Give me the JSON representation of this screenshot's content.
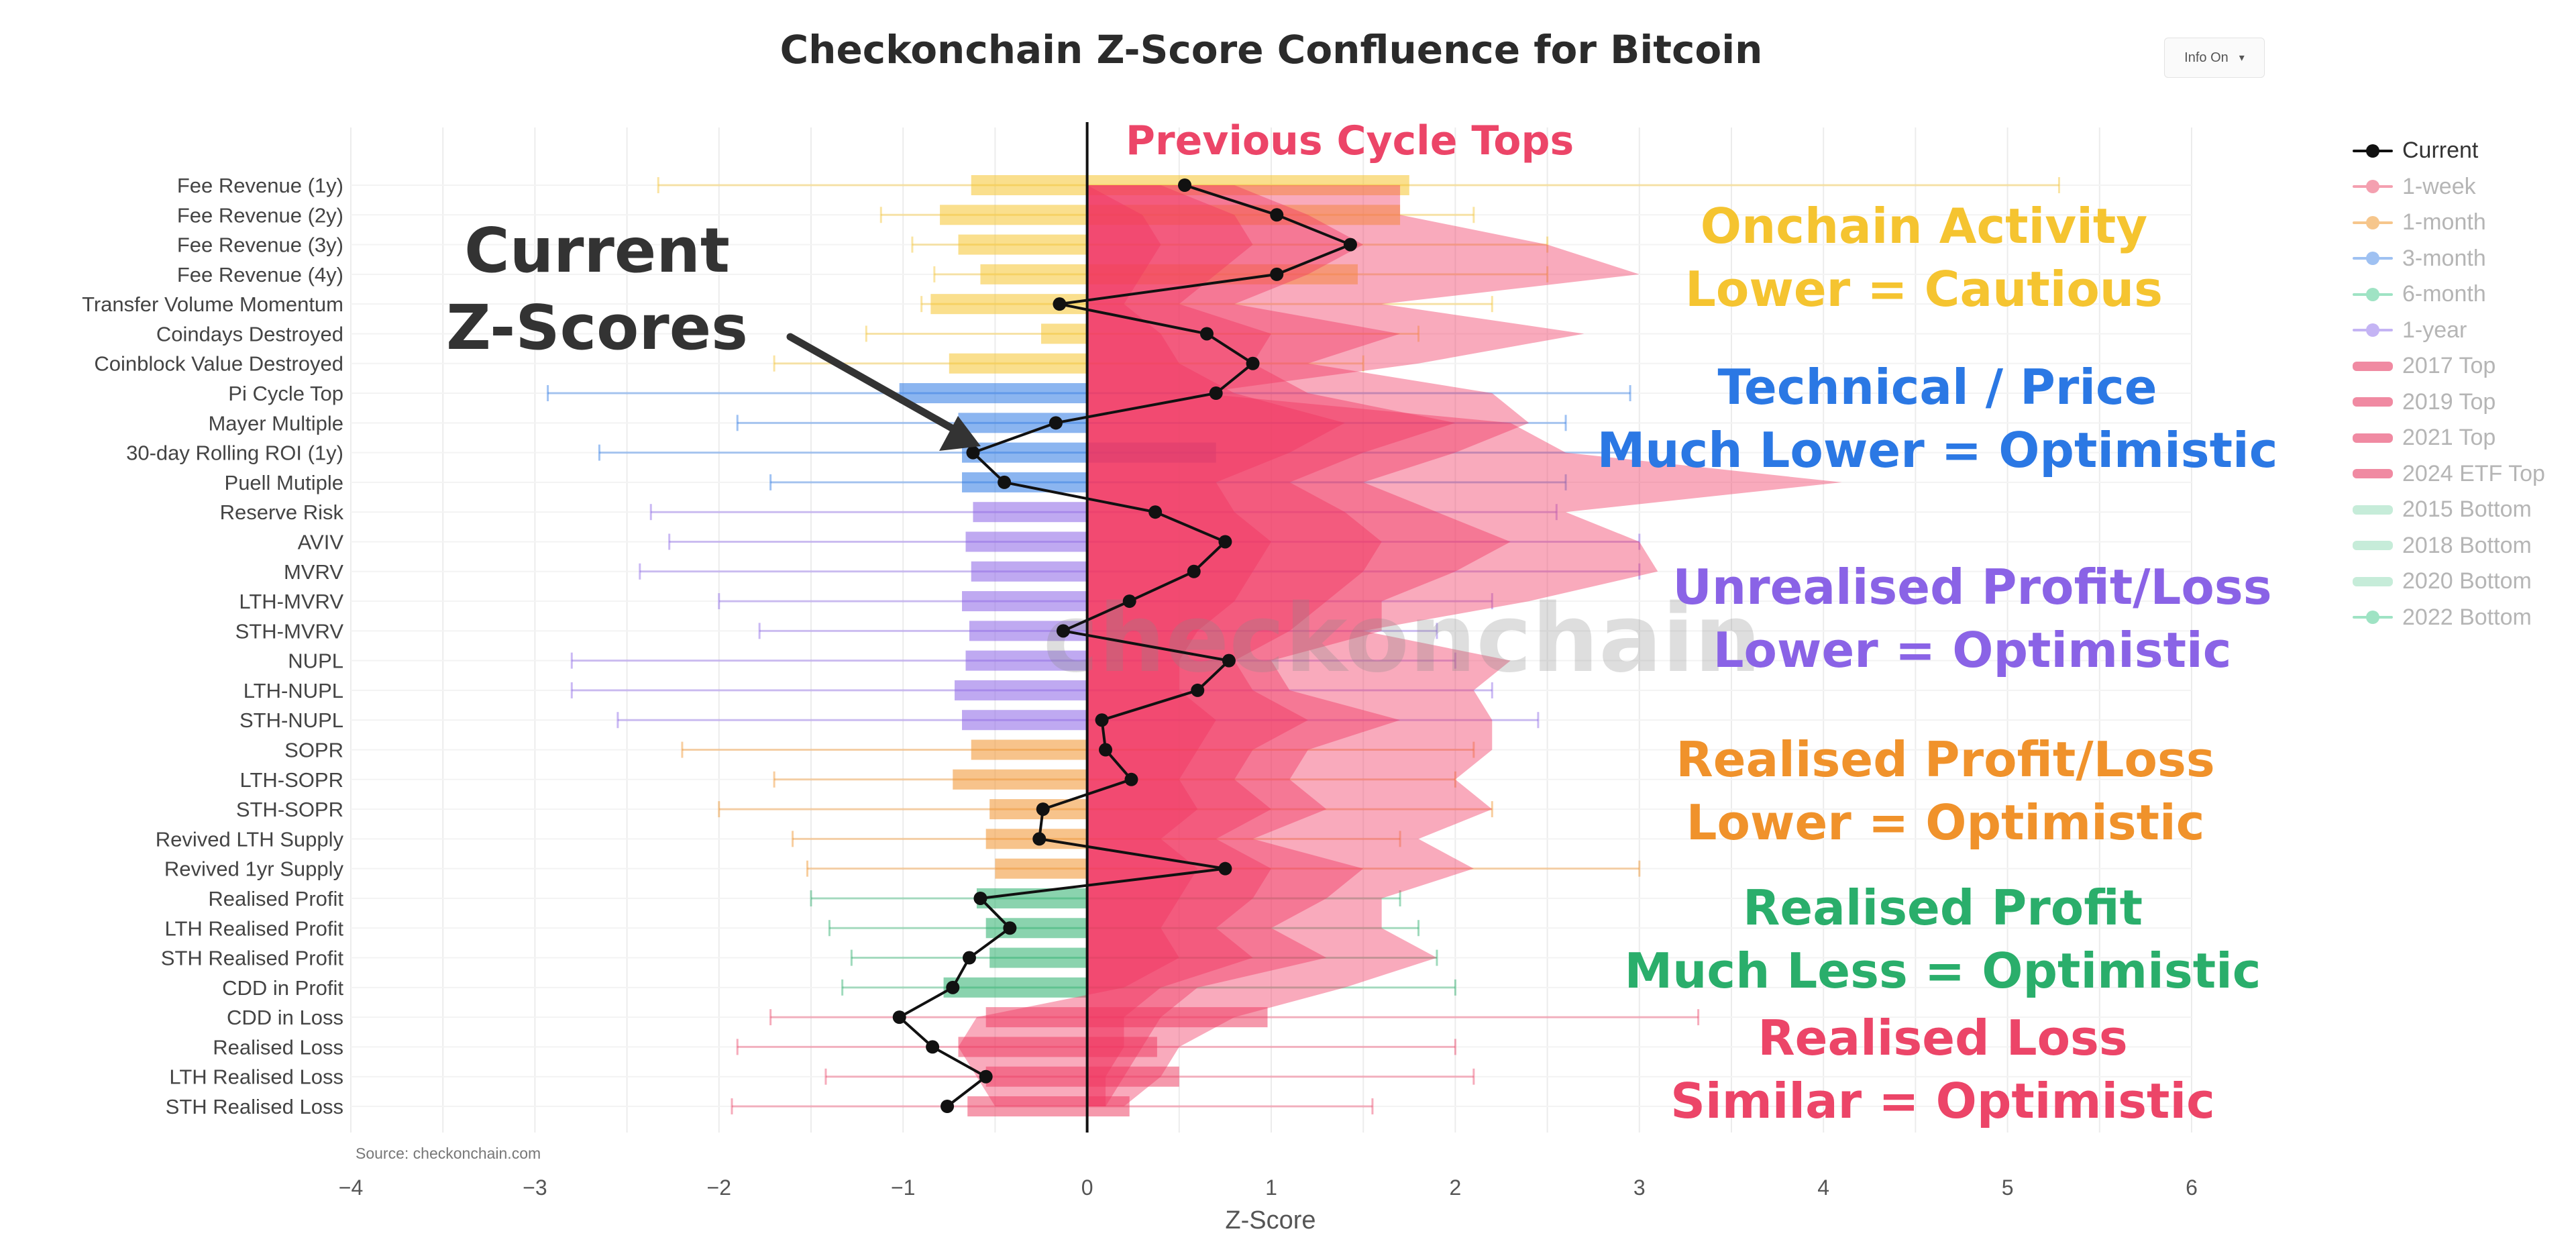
{
  "title": "Checkonchain Z-Score Confluence for Bitcoin",
  "info_button": {
    "label": "Info On",
    "icon": "caret-down-icon"
  },
  "source": "Source: checkonchain.com",
  "watermark": "checkonchain",
  "x_axis_title": "Z-Score",
  "previous_cycle_tops_label": "Previous Cycle Tops",
  "current_label": [
    "Current",
    "Z-Scores"
  ],
  "colors": {
    "current": "#000000",
    "top_fill": "#f0345f",
    "onchain": "#f5c430",
    "technical": "#2b78e4",
    "unrealised": "#8a63e6",
    "realised_pl": "#f0922b",
    "realised_profit": "#2aae6b",
    "realised_loss": "#ec4568"
  },
  "legend": [
    {
      "label": "Current",
      "color": "#111111",
      "style": "line-dot",
      "active": true
    },
    {
      "label": "1-week",
      "color": "#f4a0b0",
      "style": "line-dot"
    },
    {
      "label": "1-month",
      "color": "#f6c68c",
      "style": "line-dot"
    },
    {
      "label": "3-month",
      "color": "#9fc1f2",
      "style": "line-dot"
    },
    {
      "label": "6-month",
      "color": "#9fe3c4",
      "style": "line-dot"
    },
    {
      "label": "1-year",
      "color": "#c4b4f4",
      "style": "line-dot"
    },
    {
      "label": "2017 Top",
      "color": "#f08aa2",
      "style": "band"
    },
    {
      "label": "2019 Top",
      "color": "#f08aa2",
      "style": "band"
    },
    {
      "label": "2021 Top",
      "color": "#f08aa2",
      "style": "band"
    },
    {
      "label": "2024 ETF Top",
      "color": "#f08aa2",
      "style": "band"
    },
    {
      "label": "2015 Bottom",
      "color": "#c6ecd9",
      "style": "band"
    },
    {
      "label": "2018 Bottom",
      "color": "#c6ecd9",
      "style": "band"
    },
    {
      "label": "2020 Bottom",
      "color": "#c6ecd9",
      "style": "band"
    },
    {
      "label": "2022 Bottom",
      "color": "#9fe3c4",
      "style": "line-dot"
    }
  ],
  "annotations": [
    {
      "lines": [
        "Onchain Activity",
        "Lower = Cautious"
      ],
      "color": "#f5c430"
    },
    {
      "lines": [
        "Technical / Price",
        "Much Lower = Optimistic"
      ],
      "color": "#2b78e4"
    },
    {
      "lines": [
        "Unrealised Profit/Loss",
        "Lower = Optimistic"
      ],
      "color": "#8a63e6"
    },
    {
      "lines": [
        "Realised Profit/Loss",
        "Lower = Optimistic"
      ],
      "color": "#f0922b"
    },
    {
      "lines": [
        "Realised Profit",
        "Much Less = Optimistic"
      ],
      "color": "#2aae6b"
    },
    {
      "lines": [
        "Realised Loss",
        "Similar = Optimistic"
      ],
      "color": "#ec4568"
    }
  ],
  "chart_data": {
    "type": "bar",
    "orientation": "horizontal",
    "xlim": [
      -4,
      6
    ],
    "x_ticks": [
      "−4",
      "−3",
      "−2",
      "−1",
      "0",
      "1",
      "2",
      "3",
      "4",
      "5",
      "6"
    ],
    "xlabel": "Z-Score",
    "grid": true,
    "legend_position": "right",
    "categories": [
      "Fee Revenue (1y)",
      "Fee Revenue (2y)",
      "Fee Revenue (3y)",
      "Fee Revenue (4y)",
      "Transfer Volume Momentum",
      "Coindays Destroyed",
      "Coinblock Value Destroyed",
      "Pi Cycle Top",
      "Mayer Multiple",
      "30-day Rolling ROI (1y)",
      "Puell Mutiple",
      "Reserve Risk",
      "AVIV",
      "MVRV",
      "LTH-MVRV",
      "STH-MVRV",
      "NUPL",
      "LTH-NUPL",
      "STH-NUPL",
      "SOPR",
      "LTH-SOPR",
      "STH-SOPR",
      "Revived LTH Supply",
      "Revived 1yr Supply",
      "Realised Profit",
      "LTH Realised Profit",
      "STH Realised Profit",
      "CDD in Profit",
      "CDD in Loss",
      "Realised Loss",
      "LTH Realised Loss",
      "STH Realised Loss"
    ],
    "groups": [
      "onchain",
      "onchain",
      "onchain",
      "onchain",
      "onchain",
      "onchain",
      "onchain",
      "technical",
      "technical",
      "technical",
      "technical",
      "unrealised",
      "unrealised",
      "unrealised",
      "unrealised",
      "unrealised",
      "unrealised",
      "unrealised",
      "unrealised",
      "realised_pl",
      "realised_pl",
      "realised_pl",
      "realised_pl",
      "realised_pl",
      "realised_profit",
      "realised_profit",
      "realised_profit",
      "realised_profit",
      "realised_loss",
      "realised_loss",
      "realised_loss",
      "realised_loss"
    ],
    "series": [
      {
        "name": "Current",
        "type": "line",
        "values": [
          0.53,
          1.03,
          1.43,
          1.03,
          -0.15,
          0.65,
          0.9,
          0.7,
          -0.17,
          -0.62,
          -0.45,
          0.37,
          0.75,
          0.58,
          0.23,
          -0.13,
          0.77,
          0.6,
          0.08,
          0.1,
          0.24,
          -0.24,
          -0.26,
          0.75,
          -0.58,
          -0.42,
          -0.64,
          -0.73,
          -1.02,
          -0.84,
          -0.55,
          -0.76
        ]
      },
      {
        "name": "2017 Top",
        "type": "area",
        "values": [
          1.7,
          1.7,
          2.5,
          3.0,
          1.6,
          2.7,
          1.8,
          0.6,
          2.3,
          2.6,
          4.1,
          2.6,
          3.0,
          3.1,
          2.4,
          1.5,
          2.3,
          2.1,
          2.2,
          2.2,
          2.0,
          2.2,
          1.8,
          2.1,
          1.6,
          1.6,
          1.9,
          1.4,
          0.8,
          0.5,
          0.4,
          0.2
        ]
      },
      {
        "name": "2019 Top",
        "type": "area",
        "values": [
          0.8,
          1.2,
          1.5,
          1.2,
          0.8,
          1.7,
          1.2,
          2.2,
          2.4,
          2.0,
          1.5,
          1.9,
          2.3,
          2.0,
          1.6,
          1.6,
          1.0,
          1.1,
          1.7,
          1.2,
          1.1,
          1.3,
          0.9,
          1.5,
          1.3,
          1.0,
          1.3,
          0.6,
          0.4,
          0.3,
          0.2,
          0.1
        ]
      },
      {
        "name": "2021 Top",
        "type": "area",
        "values": [
          0.4,
          0.8,
          0.9,
          0.7,
          0.5,
          1.0,
          0.9,
          1.2,
          2.0,
          1.5,
          1.1,
          1.4,
          1.6,
          1.5,
          1.3,
          1.1,
          0.8,
          0.9,
          1.2,
          0.9,
          0.8,
          1.0,
          0.7,
          1.0,
          0.9,
          0.7,
          0.9,
          0.4,
          0.2,
          0.2,
          0.1,
          0.1
        ]
      },
      {
        "name": "2024 ETF Top",
        "type": "area",
        "values": [
          0.0,
          0.3,
          0.4,
          0.3,
          0.2,
          0.4,
          0.5,
          0.8,
          1.4,
          1.1,
          0.7,
          0.8,
          1.0,
          0.9,
          0.8,
          0.6,
          0.5,
          0.5,
          0.7,
          0.6,
          0.5,
          0.6,
          0.4,
          0.6,
          0.5,
          0.4,
          0.5,
          0.2,
          -0.6,
          -0.7,
          -0.6,
          -0.5
        ]
      }
    ],
    "iqr_bars": [
      [
        -0.63,
        1.75
      ],
      [
        -0.8,
        1.7
      ],
      [
        -0.7,
        0.0
      ],
      [
        -0.58,
        1.47
      ],
      [
        -0.85,
        0.0
      ],
      [
        -0.25,
        0.0
      ],
      [
        -0.75,
        0.0
      ],
      [
        -1.02,
        0.0
      ],
      [
        -0.7,
        0.0
      ],
      [
        -0.68,
        0.7
      ],
      [
        -0.68,
        0.0
      ],
      [
        -0.62,
        0.0
      ],
      [
        -0.66,
        0.0
      ],
      [
        -0.63,
        0.0
      ],
      [
        -0.68,
        0.0
      ],
      [
        -0.64,
        0.0
      ],
      [
        -0.66,
        0.0
      ],
      [
        -0.72,
        0.0
      ],
      [
        -0.68,
        0.0
      ],
      [
        -0.63,
        0.0
      ],
      [
        -0.73,
        0.0
      ],
      [
        -0.53,
        0.0
      ],
      [
        -0.55,
        0.0
      ],
      [
        -0.5,
        0.0
      ],
      [
        -0.6,
        0.0
      ],
      [
        -0.55,
        0.0
      ],
      [
        -0.53,
        0.0
      ],
      [
        -0.78,
        0.0
      ],
      [
        -0.55,
        0.98
      ],
      [
        -0.7,
        0.38
      ],
      [
        -0.55,
        0.5
      ],
      [
        -0.65,
        0.23
      ]
    ],
    "whiskers": [
      [
        -2.33,
        5.28
      ],
      [
        -1.12,
        2.1
      ],
      [
        -0.95,
        2.5
      ],
      [
        -0.83,
        2.5
      ],
      [
        -0.9,
        2.2
      ],
      [
        -1.2,
        1.8
      ],
      [
        -1.7,
        1.5
      ],
      [
        -2.93,
        2.95
      ],
      [
        -1.9,
        2.6
      ],
      [
        -2.65,
        3.0
      ],
      [
        -1.72,
        2.6
      ],
      [
        -2.37,
        2.55
      ],
      [
        -2.27,
        3.0
      ],
      [
        -2.43,
        3.0
      ],
      [
        -2.0,
        2.2
      ],
      [
        -1.78,
        1.9
      ],
      [
        -2.8,
        2.0
      ],
      [
        -2.8,
        2.2
      ],
      [
        -2.55,
        2.45
      ],
      [
        -2.2,
        2.1
      ],
      [
        -1.7,
        2.0
      ],
      [
        -2.0,
        2.2
      ],
      [
        -1.6,
        1.7
      ],
      [
        -1.52,
        3.0
      ],
      [
        -1.5,
        1.7
      ],
      [
        -1.4,
        1.8
      ],
      [
        -1.28,
        1.9
      ],
      [
        -1.33,
        2.0
      ],
      [
        -1.72,
        3.32
      ],
      [
        -1.9,
        2.0
      ],
      [
        -1.42,
        2.1
      ],
      [
        -1.93,
        1.55
      ]
    ]
  }
}
